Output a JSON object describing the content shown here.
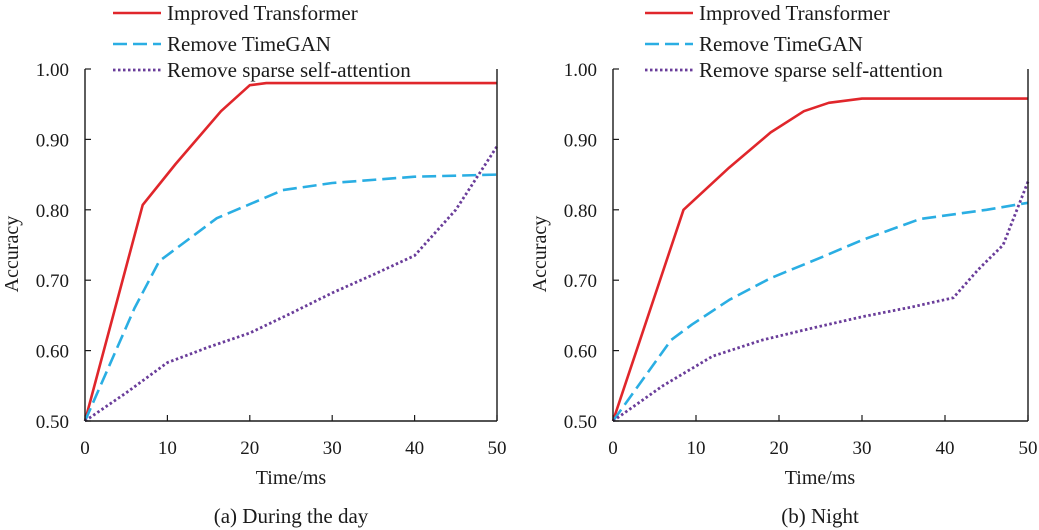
{
  "chart_data": [
    {
      "type": "line",
      "caption": "(a) During the day",
      "xlabel": "Time/ms",
      "ylabel": "Accuracy",
      "xlim": [
        0,
        50
      ],
      "ylim": [
        0.5,
        1.0
      ],
      "xticks": [
        "0",
        "10",
        "20",
        "30",
        "40",
        "50"
      ],
      "yticks": [
        "0.50",
        "0.60",
        "0.70",
        "0.80",
        "0.90",
        "1.00"
      ],
      "xtick_values": [
        0,
        10,
        20,
        30,
        40,
        50
      ],
      "ytick_values": [
        0.5,
        0.6,
        0.7,
        0.8,
        0.9,
        1.0
      ],
      "legend": [
        "Improved Transformer",
        "Remove TimeGAN",
        "Remove sparse self-attention"
      ],
      "series": [
        {
          "name": "Improved Transformer",
          "color": "#e0262b",
          "style": "solid",
          "points": [
            [
              0,
              0.5
            ],
            [
              7,
              0.807
            ],
            [
              11,
              0.865
            ],
            [
              16.5,
              0.94
            ],
            [
              20,
              0.977
            ],
            [
              22,
              0.98
            ],
            [
              30,
              0.98
            ],
            [
              40,
              0.98
            ],
            [
              50,
              0.98
            ]
          ]
        },
        {
          "name": "Remove TimeGAN",
          "color": "#2aaee3",
          "style": "dashed",
          "points": [
            [
              0,
              0.5
            ],
            [
              6,
              0.66
            ],
            [
              9,
              0.727
            ],
            [
              16,
              0.788
            ],
            [
              20,
              0.808
            ],
            [
              24,
              0.828
            ],
            [
              30,
              0.838
            ],
            [
              40,
              0.847
            ],
            [
              50,
              0.85
            ]
          ]
        },
        {
          "name": "Remove sparse self-attention",
          "color": "#6a3d9a",
          "style": "dotted",
          "points": [
            [
              0,
              0.5
            ],
            [
              5,
              0.54
            ],
            [
              10,
              0.583
            ],
            [
              15,
              0.605
            ],
            [
              20,
              0.625
            ],
            [
              25,
              0.653
            ],
            [
              30,
              0.682
            ],
            [
              35,
              0.708
            ],
            [
              40,
              0.735
            ],
            [
              45,
              0.8
            ],
            [
              50,
              0.89
            ]
          ]
        }
      ]
    },
    {
      "type": "line",
      "caption": "(b) Night",
      "xlabel": "Time/ms",
      "ylabel": "Accuracy",
      "xlim": [
        0,
        50
      ],
      "ylim": [
        0.5,
        1.0
      ],
      "xticks": [
        "0",
        "10",
        "20",
        "30",
        "40",
        "50"
      ],
      "yticks": [
        "0.50",
        "0.60",
        "0.70",
        "0.80",
        "0.90",
        "1.00"
      ],
      "xtick_values": [
        0,
        10,
        20,
        30,
        40,
        50
      ],
      "ytick_values": [
        0.5,
        0.6,
        0.7,
        0.8,
        0.9,
        1.0
      ],
      "legend": [
        "Improved Transformer",
        "Remove TimeGAN",
        "Remove sparse self-attention"
      ],
      "series": [
        {
          "name": "Improved Transformer",
          "color": "#e0262b",
          "style": "solid",
          "points": [
            [
              0,
              0.5
            ],
            [
              8.5,
              0.8
            ],
            [
              14,
              0.86
            ],
            [
              19,
              0.91
            ],
            [
              23,
              0.94
            ],
            [
              26,
              0.952
            ],
            [
              30,
              0.958
            ],
            [
              40,
              0.958
            ],
            [
              50,
              0.958
            ]
          ]
        },
        {
          "name": "Remove TimeGAN",
          "color": "#2aaee3",
          "style": "dashed",
          "points": [
            [
              0,
              0.5
            ],
            [
              7,
              0.615
            ],
            [
              9.5,
              0.637
            ],
            [
              14,
              0.672
            ],
            [
              19,
              0.703
            ],
            [
              25,
              0.732
            ],
            [
              30,
              0.757
            ],
            [
              37,
              0.787
            ],
            [
              45,
              0.8
            ],
            [
              50,
              0.81
            ]
          ]
        },
        {
          "name": "Remove sparse self-attention",
          "color": "#6a3d9a",
          "style": "dotted",
          "points": [
            [
              0,
              0.5
            ],
            [
              6,
              0.55
            ],
            [
              12,
              0.592
            ],
            [
              18,
              0.615
            ],
            [
              24,
              0.632
            ],
            [
              30,
              0.648
            ],
            [
              36,
              0.662
            ],
            [
              41,
              0.675
            ],
            [
              44,
              0.715
            ],
            [
              47,
              0.75
            ],
            [
              50,
              0.84
            ]
          ]
        }
      ]
    }
  ]
}
